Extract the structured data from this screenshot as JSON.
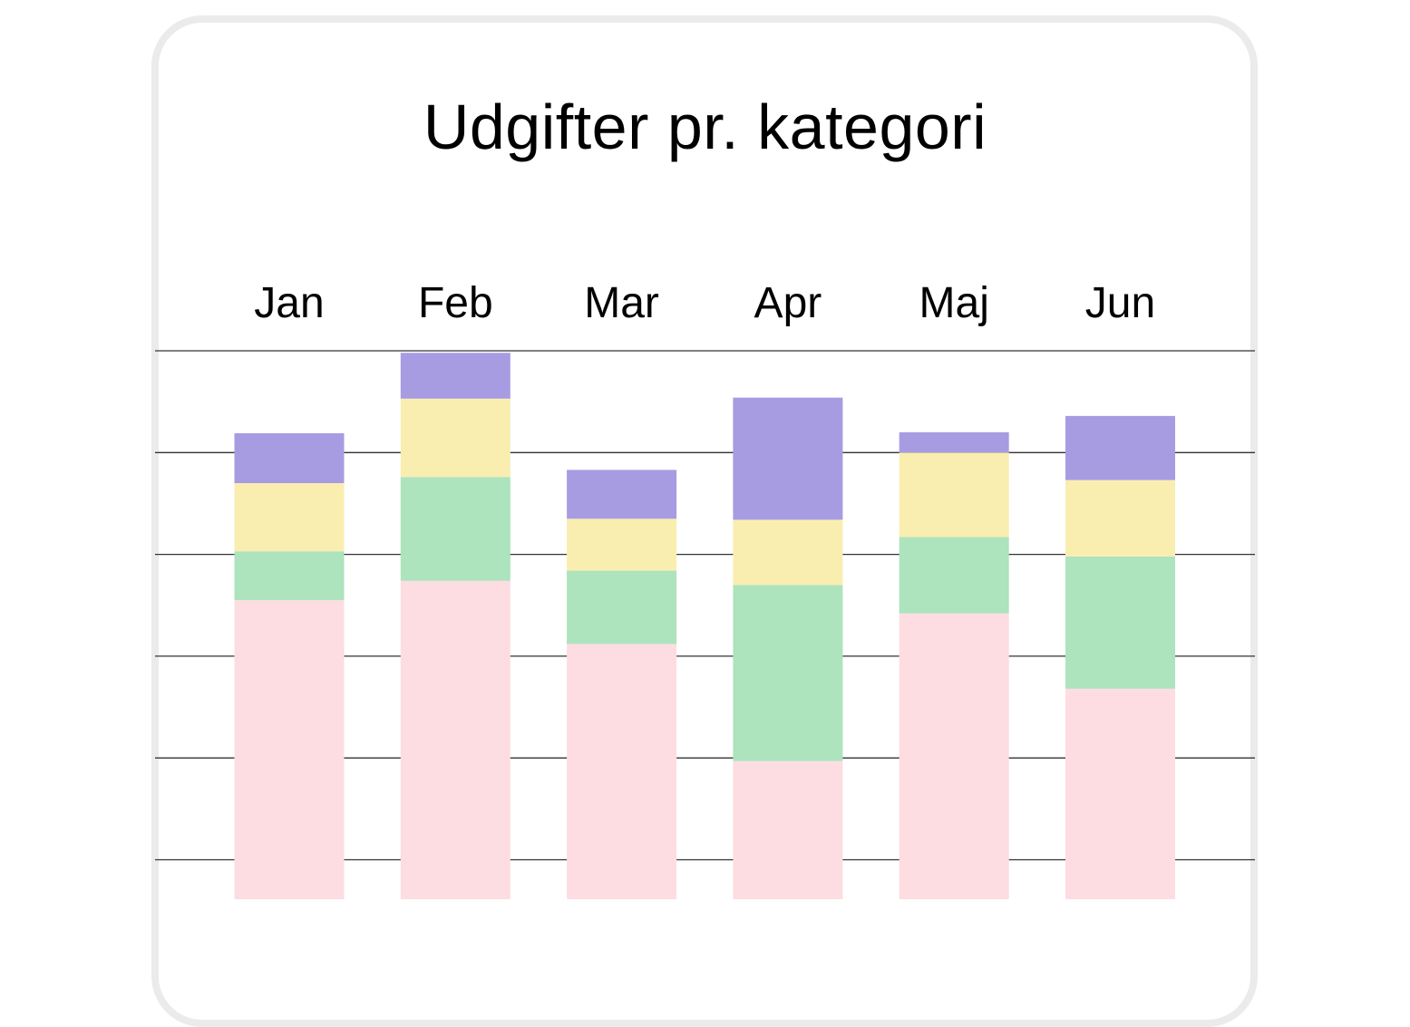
{
  "chart_data": {
    "type": "bar",
    "stacked": true,
    "title": "Udgifter pr. kategori",
    "categories": [
      "Jan",
      "Feb",
      "Mar",
      "Apr",
      "Maj",
      "Jun"
    ],
    "category_axis_position": "top",
    "series": [
      {
        "color": "#fddde1",
        "values": [
          3.55,
          3.74,
          3.12,
          1.97,
          3.42,
          2.68
        ]
      },
      {
        "color": "#ade3bd",
        "values": [
          0.48,
          1.02,
          0.72,
          1.73,
          0.75,
          1.3
        ]
      },
      {
        "color": "#f9eeb0",
        "values": [
          0.67,
          0.77,
          0.51,
          0.64,
          0.83,
          0.75
        ]
      },
      {
        "color": "#a79ce2",
        "values": [
          0.49,
          0.45,
          0.48,
          1.2,
          0.2,
          0.63
        ]
      }
    ],
    "ylim": [
      0,
      6
    ],
    "grid": true,
    "xlabel": "",
    "ylabel": ""
  },
  "colors": {
    "card_border": "#ebebeb",
    "gridline": "#333333"
  }
}
